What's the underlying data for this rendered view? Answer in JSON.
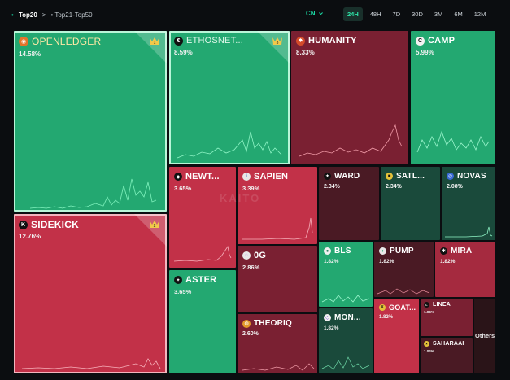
{
  "nav": {
    "group_active": "Top20",
    "separator": ">",
    "group_other": "Top21-Top50",
    "language": "CN",
    "time_ranges": [
      "24H",
      "48H",
      "7D",
      "30D",
      "3M",
      "6M",
      "12M"
    ],
    "active_range": "24H"
  },
  "watermark": "KAITO",
  "tiles": {
    "openledger": {
      "name": "OPENLEDGER",
      "pct": "14.58%",
      "rank": "1"
    },
    "ethosnet": {
      "name": "ETHOSNET...",
      "pct": "8.59%",
      "rank": "3"
    },
    "humanity": {
      "name": "HUMANITY",
      "pct": "8.33%"
    },
    "camp": {
      "name": "CAMP",
      "pct": "5.99%"
    },
    "newt": {
      "name": "NEWT...",
      "pct": "3.65%"
    },
    "sapien": {
      "name": "SAPIEN",
      "pct": "3.39%"
    },
    "ward": {
      "name": "WARD",
      "pct": "2.34%"
    },
    "satl": {
      "name": "SATL...",
      "pct": "2.34%"
    },
    "novas": {
      "name": "NOVAS",
      "pct": "2.08%"
    },
    "sidekick": {
      "name": "SIDEKICK",
      "pct": "12.76%",
      "rank": "2"
    },
    "og": {
      "name": "0G",
      "pct": "2.86%"
    },
    "bls": {
      "name": "BLS",
      "pct": "1.82%"
    },
    "pump": {
      "name": "PUMP",
      "pct": "1.82%"
    },
    "mira": {
      "name": "MIRA",
      "pct": "1.82%"
    },
    "aster": {
      "name": "ASTER",
      "pct": "3.65%"
    },
    "mon": {
      "name": "MON...",
      "pct": "1.82%"
    },
    "goat": {
      "name": "GOAT...",
      "pct": "1.82%"
    },
    "linea": {
      "name": "LINEA",
      "pct": "1.04%"
    },
    "theoriq": {
      "name": "THEORIQ",
      "pct": "2.60%"
    },
    "saharaai": {
      "name": "SAHARAAI",
      "pct": "1.04%"
    },
    "others": {
      "name": "Others"
    }
  },
  "colors": {
    "green_strong": "#23a871",
    "green_dark": "#1a4a3b",
    "red_strong": "#c23148",
    "red_dark": "#7a2032",
    "accent": "#1ad3a0"
  }
}
